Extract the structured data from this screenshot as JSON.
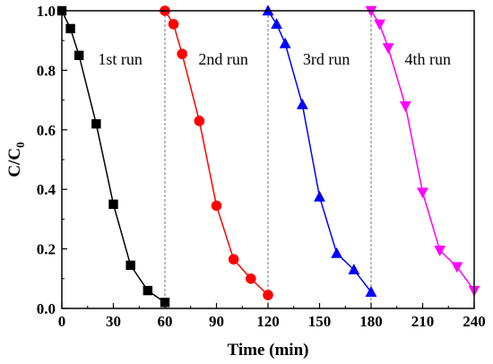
{
  "chart_data": {
    "type": "line",
    "xlabel": "Time (min)",
    "ylabel": {
      "main": "C/C",
      "sub": "0"
    },
    "xlim": [
      0,
      240
    ],
    "ylim": [
      0.0,
      1.0
    ],
    "xticks": [
      "0",
      "30",
      "60",
      "90",
      "120",
      "150",
      "180",
      "210",
      "240"
    ],
    "yticks": [
      "0.0",
      "0.2",
      "0.4",
      "0.6",
      "0.8",
      "1.0"
    ],
    "grid": false,
    "separators": [
      60,
      120,
      180
    ],
    "annotations": [
      {
        "text": "1st run",
        "x": 34,
        "y": 0.82
      },
      {
        "text": "2nd run",
        "x": 94,
        "y": 0.82
      },
      {
        "text": "3rd run",
        "x": 154,
        "y": 0.82
      },
      {
        "text": "4th run",
        "x": 213,
        "y": 0.82
      }
    ],
    "series": [
      {
        "marker": "square",
        "color": "#000000",
        "x": [
          0,
          5,
          10,
          20,
          30,
          40,
          50,
          60
        ],
        "y": [
          1.0,
          0.94,
          0.85,
          0.62,
          0.35,
          0.145,
          0.06,
          0.02
        ]
      },
      {
        "marker": "circle",
        "color": "#ff0000",
        "x": [
          60,
          65,
          70,
          80,
          90,
          100,
          110,
          120
        ],
        "y": [
          1.0,
          0.955,
          0.855,
          0.63,
          0.345,
          0.165,
          0.1,
          0.045
        ]
      },
      {
        "marker": "triangle-up",
        "color": "#0000ff",
        "x": [
          120,
          125,
          130,
          140,
          150,
          160,
          170,
          180
        ],
        "y": [
          1.0,
          0.955,
          0.89,
          0.685,
          0.375,
          0.185,
          0.13,
          0.055
        ]
      },
      {
        "marker": "triangle-down",
        "color": "#ff00ff",
        "x": [
          180,
          185,
          190,
          200,
          210,
          220,
          230,
          240
        ],
        "y": [
          1.0,
          0.955,
          0.875,
          0.68,
          0.39,
          0.195,
          0.14,
          0.06
        ]
      }
    ]
  }
}
